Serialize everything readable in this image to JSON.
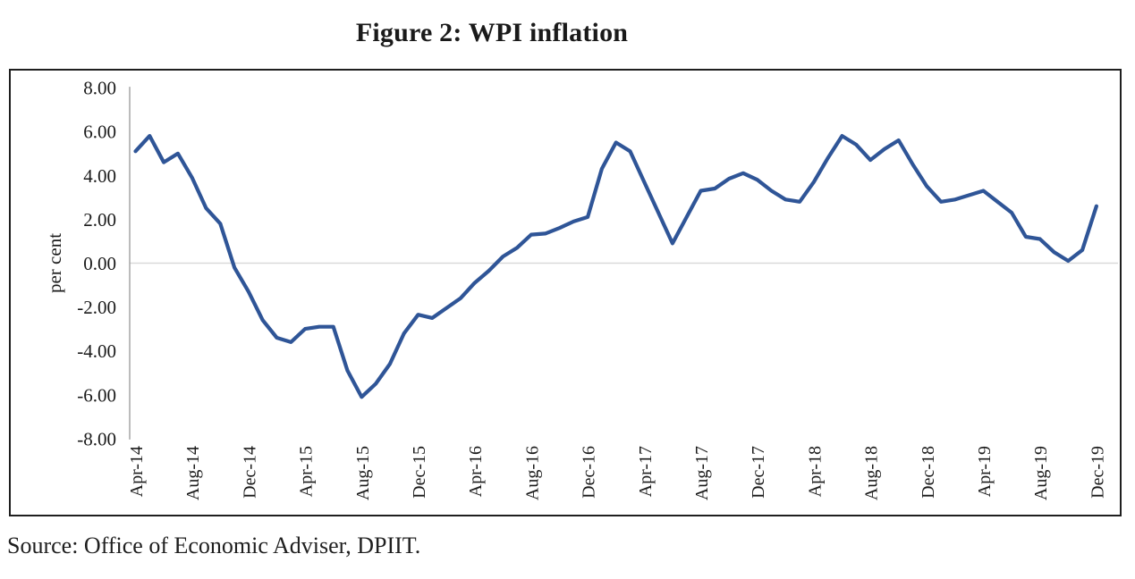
{
  "figure": {
    "title": "Figure 2: WPI inflation",
    "source_note": "Source: Office of Economic Adviser, DPIIT."
  },
  "chart_data": {
    "type": "line",
    "title": "Figure 2: WPI inflation",
    "xlabel": "",
    "ylabel": "per cent",
    "ylim": [
      -8,
      8
    ],
    "ytick_interval": 2,
    "ytick_labels": [
      "8.00",
      "6.00",
      "4.00",
      "2.00",
      "0.00",
      "-2.00",
      "-4.00",
      "-6.00",
      "-8.00"
    ],
    "grid": "horizontal zero line only",
    "legend": "none",
    "line_color": "#2F5597",
    "axis_color": "#a6a6a6",
    "zero_line_color": "#d9d9d9",
    "x": [
      "Apr-14",
      "May-14",
      "Jun-14",
      "Jul-14",
      "Aug-14",
      "Sep-14",
      "Oct-14",
      "Nov-14",
      "Dec-14",
      "Jan-15",
      "Feb-15",
      "Mar-15",
      "Apr-15",
      "May-15",
      "Jun-15",
      "Jul-15",
      "Aug-15",
      "Sep-15",
      "Oct-15",
      "Nov-15",
      "Dec-15",
      "Jan-16",
      "Feb-16",
      "Mar-16",
      "Apr-16",
      "May-16",
      "Jun-16",
      "Jul-16",
      "Aug-16",
      "Sep-16",
      "Oct-16",
      "Nov-16",
      "Dec-16",
      "Jan-17",
      "Feb-17",
      "Mar-17",
      "Apr-17",
      "May-17",
      "Jun-17",
      "Jul-17",
      "Aug-17",
      "Sep-17",
      "Oct-17",
      "Nov-17",
      "Dec-17",
      "Jan-18",
      "Feb-18",
      "Mar-18",
      "Apr-18",
      "May-18",
      "Jun-18",
      "Jul-18",
      "Aug-18",
      "Sep-18",
      "Oct-18",
      "Nov-18",
      "Dec-18",
      "Jan-19",
      "Feb-19",
      "Mar-19",
      "Apr-19",
      "May-19",
      "Jun-19",
      "Jul-19",
      "Aug-19",
      "Sep-19",
      "Oct-19",
      "Nov-19",
      "Dec-19"
    ],
    "xticks_shown": [
      "Apr-14",
      "Aug-14",
      "Dec-14",
      "Apr-15",
      "Aug-15",
      "Dec-15",
      "Apr-16",
      "Aug-16",
      "Dec-16",
      "Apr-17",
      "Aug-17",
      "Dec-17",
      "Apr-18",
      "Aug-18",
      "Dec-18",
      "Apr-19",
      "Aug-19",
      "Dec-19"
    ],
    "xtick_every_n_months": 4,
    "series": [
      {
        "name": "WPI inflation (per cent, year-on-year)",
        "values": [
          5.1,
          5.8,
          4.6,
          5.0,
          3.9,
          2.5,
          1.8,
          -0.2,
          -1.3,
          -2.6,
          -3.4,
          -3.6,
          -3.0,
          -2.9,
          -2.9,
          -4.9,
          -6.1,
          -5.5,
          -4.6,
          -3.2,
          -2.35,
          -2.5,
          -2.05,
          -1.6,
          -0.9,
          -0.35,
          0.3,
          0.7,
          1.3,
          1.35,
          1.6,
          1.9,
          2.1,
          4.3,
          5.5,
          5.1,
          3.7,
          2.3,
          0.9,
          2.1,
          3.3,
          3.4,
          3.85,
          4.1,
          3.8,
          3.3,
          2.9,
          2.8,
          3.7,
          4.8,
          5.8,
          5.4,
          4.7,
          5.2,
          5.6,
          4.5,
          3.5,
          2.8,
          2.9,
          3.1,
          3.3,
          2.8,
          2.3,
          1.2,
          1.1,
          0.5,
          0.1,
          0.6,
          2.6
        ]
      }
    ]
  }
}
